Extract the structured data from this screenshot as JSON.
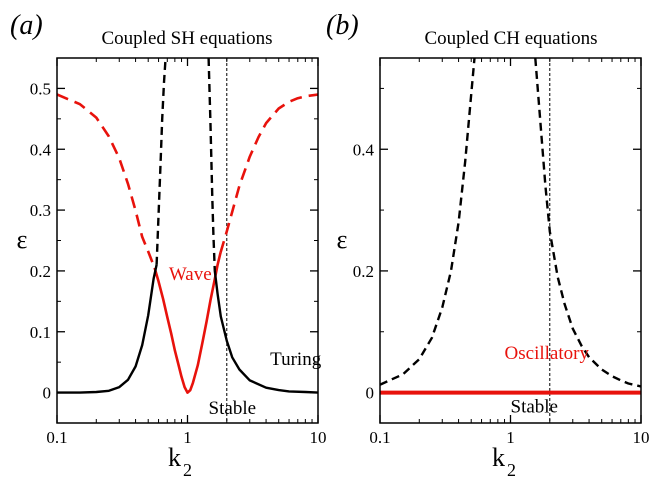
{
  "chart_data": [
    {
      "panel_label": "(a)",
      "title": "Coupled SH equations",
      "type": "line",
      "xlabel": "k",
      "xlabel_sub": "2",
      "ylabel": "ε",
      "xscale": "log",
      "xlim": [
        0.1,
        10
      ],
      "ylim": [
        -0.05,
        0.55
      ],
      "xticks": [
        0.1,
        1,
        10
      ],
      "xtick_labels": [
        "0.1",
        "1",
        "10"
      ],
      "yticks": [
        0,
        0.1,
        0.2,
        0.3,
        0.4,
        0.5
      ],
      "ytick_labels": [
        "0",
        "0.1",
        "0.2",
        "0.3",
        "0.4",
        "0.5"
      ],
      "vline": 2,
      "colors": {
        "wave": "#e8120c",
        "turing": "#000000"
      },
      "annotations": [
        {
          "text": "Wave",
          "x": 0.72,
          "y": 0.185,
          "color": "#e8120c"
        },
        {
          "text": "Turing",
          "x": 4.3,
          "y": 0.045,
          "color": "#000000"
        },
        {
          "text": "Stable",
          "x": 1.45,
          "y": -0.035,
          "color": "#000000"
        }
      ],
      "series": [
        {
          "style": "red-solid",
          "x": [
            0.56,
            0.6,
            0.65,
            0.7,
            0.75,
            0.8,
            0.85,
            0.9,
            0.95,
            1.0,
            1.05,
            1.1,
            1.2,
            1.3,
            1.4,
            1.5,
            1.6,
            1.7,
            1.79
          ],
          "y": [
            0.205,
            0.183,
            0.154,
            0.124,
            0.097,
            0.069,
            0.047,
            0.026,
            0.009,
            0.0,
            0.004,
            0.016,
            0.045,
            0.082,
            0.117,
            0.152,
            0.181,
            0.21,
            0.23
          ]
        },
        {
          "style": "red-dashed",
          "x": [
            0.1,
            0.15,
            0.2,
            0.25,
            0.3,
            0.35,
            0.4,
            0.45,
            0.5,
            0.56
          ],
          "y": [
            0.49,
            0.474,
            0.452,
            0.421,
            0.385,
            0.343,
            0.299,
            0.256,
            0.232,
            0.205
          ]
        },
        {
          "style": "red-dashed",
          "x": [
            1.79,
            2.0,
            2.5,
            3.0,
            3.5,
            4.0,
            5.0,
            6.0,
            7.0,
            8.0,
            10.0
          ],
          "y": [
            0.23,
            0.265,
            0.34,
            0.388,
            0.42,
            0.443,
            0.467,
            0.478,
            0.484,
            0.487,
            0.49
          ]
        },
        {
          "style": "black-solid",
          "x": [
            0.1,
            0.15,
            0.2,
            0.25,
            0.3,
            0.35,
            0.4,
            0.45,
            0.5,
            0.55,
            0.58
          ],
          "y": [
            0.0,
            0.0,
            0.001,
            0.003,
            0.009,
            0.021,
            0.043,
            0.078,
            0.127,
            0.187,
            0.21
          ]
        },
        {
          "style": "black-solid",
          "x": [
            1.62,
            1.7,
            1.8,
            2.0,
            2.2,
            2.5,
            3.0,
            4.0,
            5.0,
            6.0,
            8.0,
            10.0
          ],
          "y": [
            0.2,
            0.162,
            0.125,
            0.085,
            0.058,
            0.038,
            0.02,
            0.008,
            0.004,
            0.002,
            0.001,
            0.0
          ]
        },
        {
          "style": "black-dashed",
          "x": [
            0.58,
            0.6,
            0.62,
            0.64,
            0.66,
            0.68
          ],
          "y": [
            0.21,
            0.29,
            0.37,
            0.45,
            0.51,
            0.55
          ]
        },
        {
          "style": "black-dashed",
          "x": [
            1.45,
            1.5,
            1.55,
            1.58,
            1.62
          ],
          "y": [
            0.55,
            0.44,
            0.32,
            0.26,
            0.2
          ]
        }
      ]
    },
    {
      "panel_label": "(b)",
      "title": "Coupled CH equations",
      "type": "line",
      "xlabel": "k",
      "xlabel_sub": "2",
      "ylabel": "ε",
      "xscale": "log",
      "xlim": [
        0.1,
        10
      ],
      "ylim": [
        -0.05,
        0.55
      ],
      "xticks": [
        0.1,
        1,
        10
      ],
      "xtick_labels": [
        "0.1",
        "1",
        "10"
      ],
      "yticks": [
        0,
        0.2,
        0.4
      ],
      "ytick_labels": [
        "0",
        "0.2",
        "0.4"
      ],
      "vline": 2,
      "colors": {
        "oscillatory": "#e8120c",
        "turing": "#000000"
      },
      "annotations": [
        {
          "text": "Oscillatory",
          "x": 0.9,
          "y": 0.055,
          "color": "#e8120c"
        },
        {
          "text": "Stable",
          "x": 1.0,
          "y": -0.033,
          "color": "#000000"
        }
      ],
      "series": [
        {
          "style": "red-thick",
          "x": [
            0.1,
            10
          ],
          "y": [
            0.0,
            0.0
          ]
        },
        {
          "style": "black-dashed",
          "x": [
            0.1,
            0.15,
            0.2,
            0.25,
            0.3,
            0.35,
            0.4,
            0.45,
            0.5,
            0.53
          ],
          "y": [
            0.013,
            0.03,
            0.055,
            0.09,
            0.14,
            0.2,
            0.28,
            0.38,
            0.49,
            0.55
          ]
        },
        {
          "style": "black-dashed",
          "x": [
            1.55,
            1.7,
            1.85,
            2.0,
            2.3,
            2.6,
            3.0,
            3.5,
            4.0,
            5.0,
            6.0,
            7.0,
            8.0,
            10.0
          ],
          "y": [
            0.55,
            0.44,
            0.34,
            0.265,
            0.19,
            0.145,
            0.105,
            0.077,
            0.058,
            0.038,
            0.027,
            0.02,
            0.015,
            0.01
          ]
        }
      ]
    }
  ]
}
